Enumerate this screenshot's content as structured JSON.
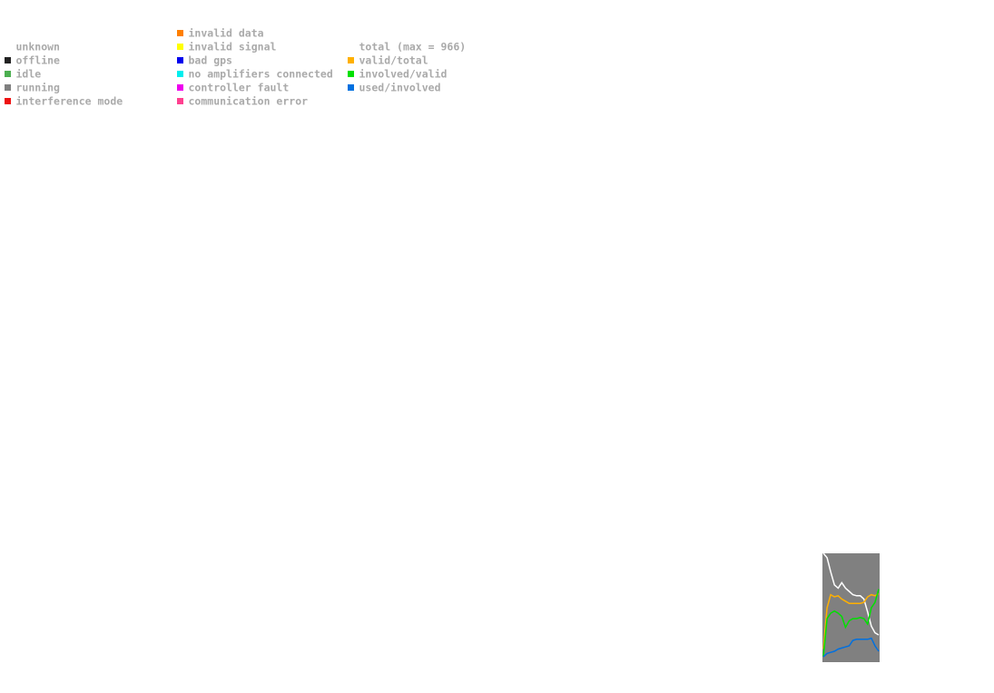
{
  "legend": [
    [
      {
        "label": "unknown"
      },
      {
        "label": "offline",
        "color": "#222222"
      },
      {
        "label": "idle",
        "color": "#4caf50"
      },
      {
        "label": "running",
        "color": "#808080"
      },
      {
        "label": "interference mode",
        "color": "#ee1111"
      }
    ],
    [
      {
        "label": "invalid data",
        "color": "#ff7f00"
      },
      {
        "label": "invalid signal",
        "color": "#ffff00"
      },
      {
        "label": "bad gps",
        "color": "#0000ee"
      },
      {
        "label": "no amplifiers connected",
        "color": "#00eeee"
      },
      {
        "label": "controller fault",
        "color": "#ee00ee"
      },
      {
        "label": "communication error",
        "color": "#ff4090"
      }
    ],
    [
      {
        "label": "total (max = 966)"
      },
      {
        "label": "valid/total",
        "color": "#ffb000"
      },
      {
        "label": "involved/valid",
        "color": "#00e000"
      },
      {
        "label": "used/involved",
        "color": "#0070e0"
      }
    ]
  ],
  "chart_data": {
    "type": "line",
    "background": "#808080",
    "ylim": [
      0,
      1
    ],
    "series": [
      {
        "color": "#ffffff",
        "values": [
          1.0,
          0.96,
          0.83,
          0.71,
          0.68,
          0.73,
          0.68,
          0.65,
          0.62,
          0.61,
          0.61,
          0.58,
          0.46,
          0.33,
          0.27,
          0.25
        ]
      },
      {
        "color": "#ffb000",
        "values": [
          0.12,
          0.5,
          0.62,
          0.6,
          0.61,
          0.58,
          0.56,
          0.54,
          0.54,
          0.54,
          0.54,
          0.55,
          0.6,
          0.62,
          0.61,
          0.63
        ]
      },
      {
        "color": "#00e000",
        "values": [
          0.05,
          0.4,
          0.45,
          0.47,
          0.45,
          0.42,
          0.32,
          0.38,
          0.4,
          0.4,
          0.41,
          0.4,
          0.35,
          0.5,
          0.55,
          0.67
        ]
      },
      {
        "color": "#0070e0",
        "values": [
          0.05,
          0.08,
          0.09,
          0.1,
          0.12,
          0.13,
          0.14,
          0.15,
          0.2,
          0.21,
          0.21,
          0.21,
          0.21,
          0.22,
          0.15,
          0.1
        ]
      }
    ]
  }
}
